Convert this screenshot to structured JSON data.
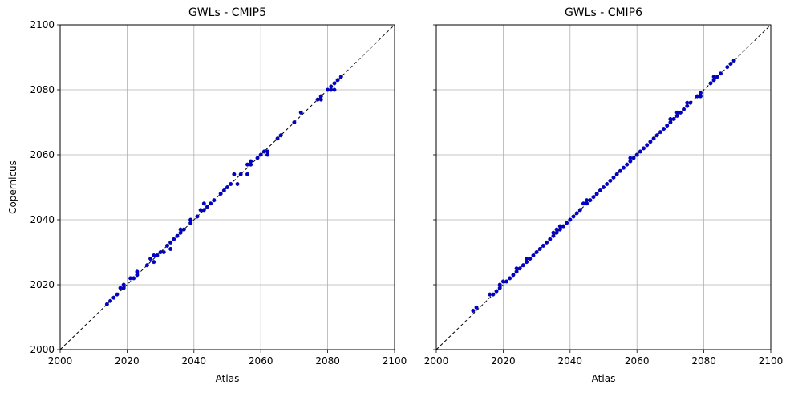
{
  "chart_data": [
    {
      "type": "scatter",
      "title": "GWLs - CMIP5",
      "xlabel": "Atlas",
      "ylabel": "Copernicus",
      "xlim": [
        2000,
        2100
      ],
      "ylim": [
        2000,
        2100
      ],
      "xticks": [
        "2000",
        "2020",
        "2040",
        "2060",
        "2080",
        "2100"
      ],
      "yticks": [
        "2000",
        "2020",
        "2040",
        "2060",
        "2080",
        "2100"
      ],
      "show_y_tick_labels": true,
      "grid": true,
      "reference_line": "y = x (dashed)",
      "marker_color": "#0000cc",
      "points": [
        [
          2014,
          2014
        ],
        [
          2015,
          2015
        ],
        [
          2016,
          2016
        ],
        [
          2017,
          2017
        ],
        [
          2018,
          2019
        ],
        [
          2019,
          2019
        ],
        [
          2019,
          2020
        ],
        [
          2021,
          2022
        ],
        [
          2022,
          2022
        ],
        [
          2023,
          2023
        ],
        [
          2023,
          2024
        ],
        [
          2026,
          2026
        ],
        [
          2027,
          2028
        ],
        [
          2028,
          2027
        ],
        [
          2028,
          2029
        ],
        [
          2029,
          2029
        ],
        [
          2030,
          2030
        ],
        [
          2031,
          2030
        ],
        [
          2032,
          2032
        ],
        [
          2033,
          2031
        ],
        [
          2033,
          2033
        ],
        [
          2034,
          2034
        ],
        [
          2035,
          2035
        ],
        [
          2036,
          2036
        ],
        [
          2036,
          2037
        ],
        [
          2037,
          2037
        ],
        [
          2039,
          2039
        ],
        [
          2039,
          2040
        ],
        [
          2041,
          2041
        ],
        [
          2042,
          2043
        ],
        [
          2043,
          2045
        ],
        [
          2043,
          2043
        ],
        [
          2044,
          2044
        ],
        [
          2045,
          2045
        ],
        [
          2046,
          2046
        ],
        [
          2048,
          2048
        ],
        [
          2049,
          2049
        ],
        [
          2050,
          2050
        ],
        [
          2051,
          2051
        ],
        [
          2052,
          2054
        ],
        [
          2053,
          2051
        ],
        [
          2054,
          2054
        ],
        [
          2056,
          2054
        ],
        [
          2056,
          2057
        ],
        [
          2057,
          2058
        ],
        [
          2057,
          2057
        ],
        [
          2059,
          2059
        ],
        [
          2060,
          2060
        ],
        [
          2061,
          2061
        ],
        [
          2062,
          2061
        ],
        [
          2062,
          2060
        ],
        [
          2065,
          2065
        ],
        [
          2066,
          2066
        ],
        [
          2070,
          2070
        ],
        [
          2072,
          2073
        ],
        [
          2077,
          2077
        ],
        [
          2078,
          2078
        ],
        [
          2078,
          2077
        ],
        [
          2080,
          2080
        ],
        [
          2081,
          2080
        ],
        [
          2081,
          2081
        ],
        [
          2082,
          2082
        ],
        [
          2083,
          2083
        ],
        [
          2084,
          2084
        ],
        [
          2082,
          2080
        ]
      ]
    },
    {
      "type": "scatter",
      "title": "GWLs - CMIP6",
      "xlabel": "Atlas",
      "ylabel": "",
      "xlim": [
        2000,
        2100
      ],
      "ylim": [
        2000,
        2100
      ],
      "xticks": [
        "2000",
        "2020",
        "2040",
        "2060",
        "2080",
        "2100"
      ],
      "yticks": [
        "2000",
        "2020",
        "2040",
        "2060",
        "2080",
        "2100"
      ],
      "show_y_tick_labels": false,
      "grid": true,
      "reference_line": "y = x (dashed)",
      "marker_color": "#0000cc",
      "points": [
        [
          2011,
          2012
        ],
        [
          2012,
          2013
        ],
        [
          2016,
          2017
        ],
        [
          2017,
          2017
        ],
        [
          2018,
          2018
        ],
        [
          2019,
          2019
        ],
        [
          2019,
          2020
        ],
        [
          2020,
          2021
        ],
        [
          2021,
          2021
        ],
        [
          2022,
          2022
        ],
        [
          2023,
          2023
        ],
        [
          2024,
          2024
        ],
        [
          2024,
          2025
        ],
        [
          2025,
          2025
        ],
        [
          2026,
          2026
        ],
        [
          2027,
          2027
        ],
        [
          2027,
          2028
        ],
        [
          2028,
          2028
        ],
        [
          2029,
          2029
        ],
        [
          2030,
          2030
        ],
        [
          2031,
          2031
        ],
        [
          2032,
          2032
        ],
        [
          2033,
          2033
        ],
        [
          2034,
          2034
        ],
        [
          2035,
          2035
        ],
        [
          2035,
          2036
        ],
        [
          2036,
          2037
        ],
        [
          2036,
          2036
        ],
        [
          2037,
          2037
        ],
        [
          2037,
          2038
        ],
        [
          2038,
          2038
        ],
        [
          2039,
          2039
        ],
        [
          2040,
          2040
        ],
        [
          2041,
          2041
        ],
        [
          2042,
          2042
        ],
        [
          2043,
          2043
        ],
        [
          2044,
          2045
        ],
        [
          2045,
          2045
        ],
        [
          2045,
          2046
        ],
        [
          2046,
          2046
        ],
        [
          2047,
          2047
        ],
        [
          2048,
          2048
        ],
        [
          2049,
          2049
        ],
        [
          2050,
          2050
        ],
        [
          2051,
          2051
        ],
        [
          2052,
          2052
        ],
        [
          2053,
          2053
        ],
        [
          2054,
          2054
        ],
        [
          2055,
          2055
        ],
        [
          2056,
          2056
        ],
        [
          2057,
          2057
        ],
        [
          2058,
          2058
        ],
        [
          2058,
          2059
        ],
        [
          2059,
          2059
        ],
        [
          2060,
          2060
        ],
        [
          2061,
          2061
        ],
        [
          2062,
          2062
        ],
        [
          2063,
          2063
        ],
        [
          2064,
          2064
        ],
        [
          2065,
          2065
        ],
        [
          2066,
          2066
        ],
        [
          2067,
          2067
        ],
        [
          2068,
          2068
        ],
        [
          2069,
          2069
        ],
        [
          2070,
          2070
        ],
        [
          2070,
          2071
        ],
        [
          2071,
          2071
        ],
        [
          2072,
          2072
        ],
        [
          2072,
          2073
        ],
        [
          2073,
          2073
        ],
        [
          2074,
          2074
        ],
        [
          2075,
          2075
        ],
        [
          2075,
          2076
        ],
        [
          2076,
          2076
        ],
        [
          2078,
          2078
        ],
        [
          2079,
          2078
        ],
        [
          2079,
          2079
        ],
        [
          2082,
          2082
        ],
        [
          2083,
          2083
        ],
        [
          2083,
          2084
        ],
        [
          2084,
          2084
        ],
        [
          2085,
          2085
        ],
        [
          2087,
          2087
        ],
        [
          2088,
          2088
        ],
        [
          2089,
          2089
        ]
      ]
    }
  ]
}
